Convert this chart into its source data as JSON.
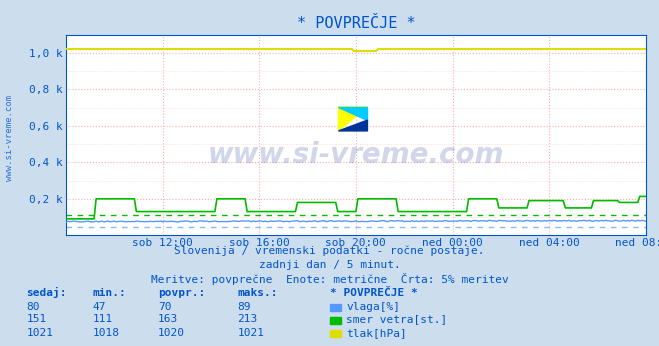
{
  "title": "* POVPREČJE *",
  "bg_color": "#ccdded",
  "plot_bg_color": "#ffffff",
  "grid_color_major": "#ffaaaa",
  "grid_color_minor": "#ffd0d0",
  "text_color": "#0055cc",
  "watermark_color": "#1a3399",
  "subtitle1": "Slovenija / vremenski podatki - ročne postaje.",
  "subtitle2": "zadnji dan / 5 minut.",
  "subtitle3": "Meritve: povprečne  Enote: metrične  Črta: 5% meritev",
  "xlabel_ticks": [
    "sob 12:00",
    "sob 16:00",
    "sob 20:00",
    "ned 00:00",
    "ned 04:00",
    "ned 08:00"
  ],
  "ylim": [
    0,
    1100
  ],
  "ytick_vals": [
    200,
    400,
    600,
    800,
    1000
  ],
  "ytick_labels": [
    "0,2 k",
    "0,4 k",
    "0,6 k",
    "0,8 k",
    "1,0 k"
  ],
  "legend_title": "* POVPREČJE *",
  "legend_items": [
    {
      "label": "vlaga[%]",
      "color": "#5599ff"
    },
    {
      "label": "smer vetra[st.]",
      "color": "#00bb00"
    },
    {
      "label": "tlak[hPa]",
      "color": "#dddd00"
    }
  ],
  "table_headers": [
    "sedaj:",
    "min.:",
    "povpr.:",
    "maks.:"
  ],
  "table_data": [
    [
      80,
      47,
      70,
      89
    ],
    [
      151,
      111,
      163,
      213
    ],
    [
      1021,
      1018,
      1020,
      1021
    ]
  ],
  "vlaga_color": "#5599ff",
  "smer_color": "#00bb00",
  "tlak_color": "#dddd00",
  "n_points": 289
}
